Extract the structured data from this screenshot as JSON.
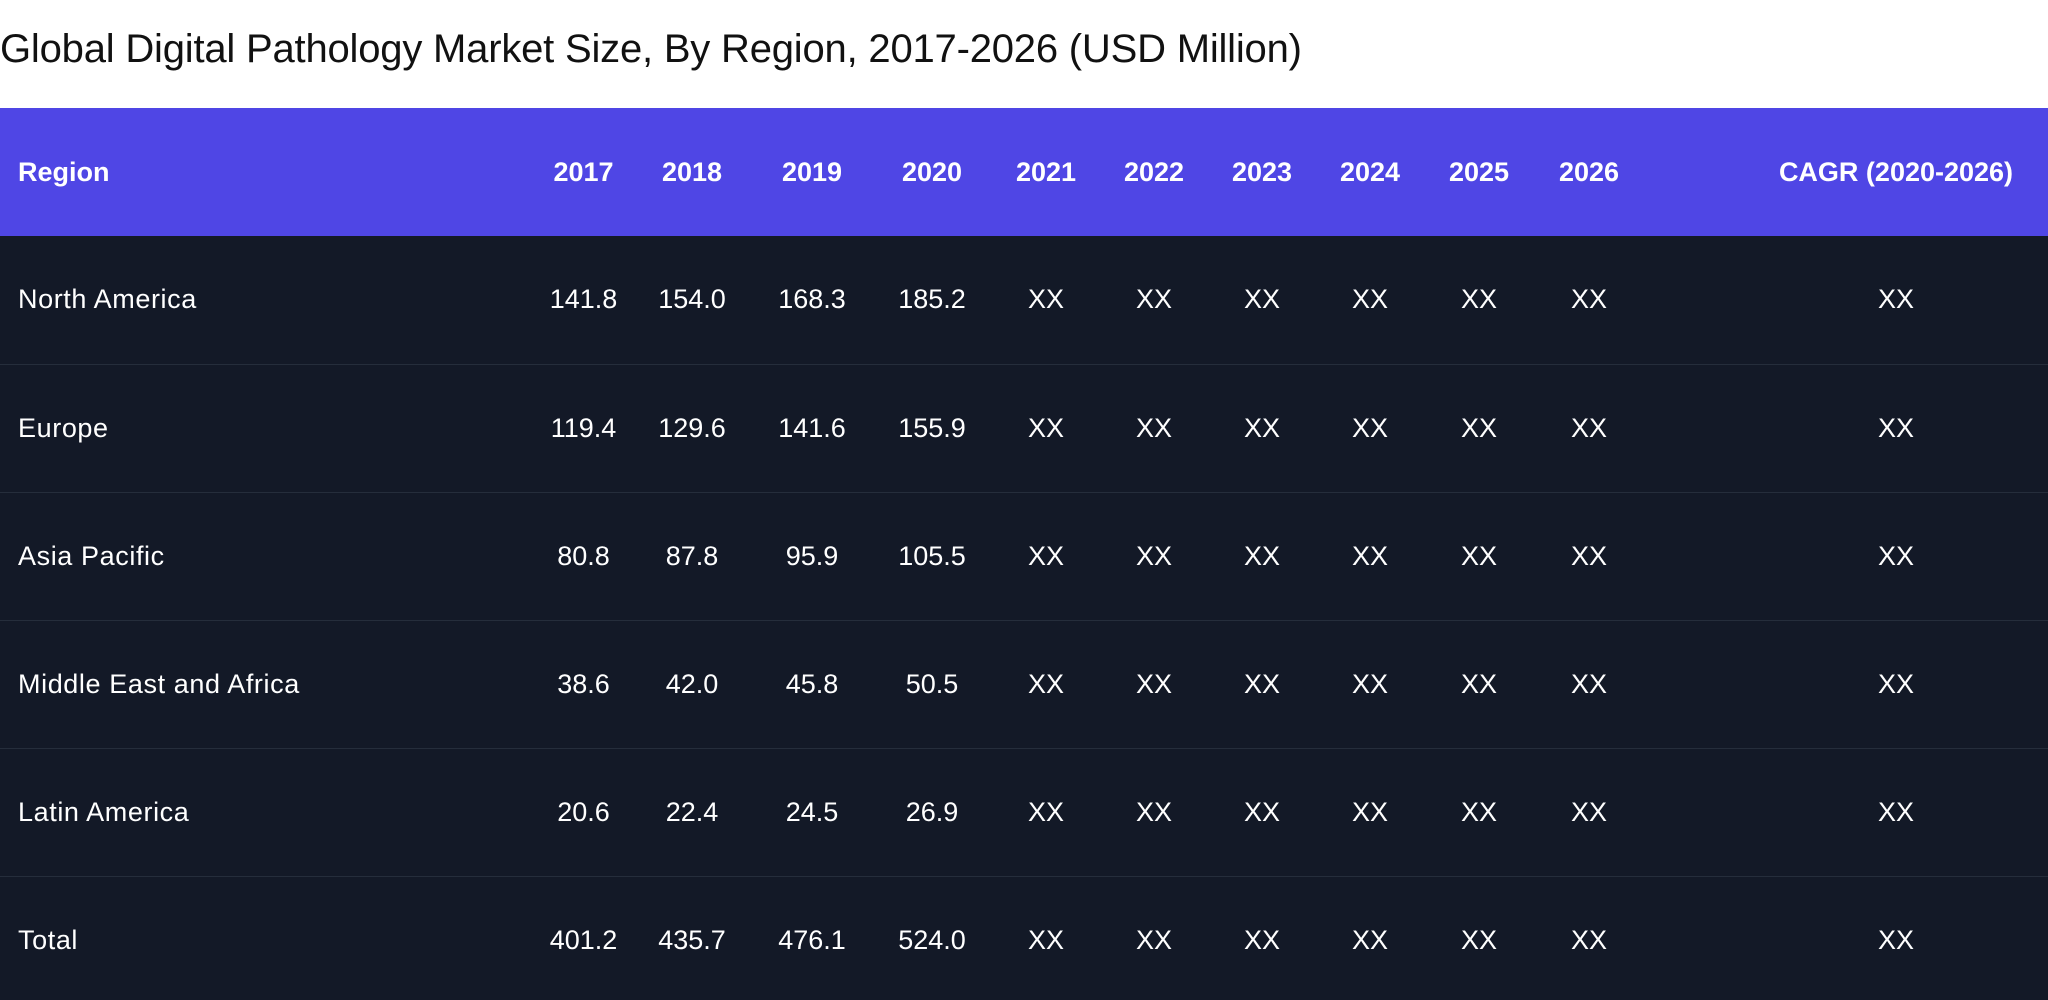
{
  "title": "Global Digital Pathology Market Size, By Region, 2017-2026 (USD Million)",
  "table": {
    "headers": [
      "Region",
      "2017",
      "2018",
      "2019",
      "2020",
      "2021",
      "2022",
      "2023",
      "2024",
      "2025",
      "2026",
      "CAGR (2020-2026)"
    ],
    "rows": [
      [
        "North America",
        "141.8",
        "154.0",
        "168.3",
        "185.2",
        "XX",
        "XX",
        "XX",
        "XX",
        "XX",
        "XX",
        "XX"
      ],
      [
        "Europe",
        "119.4",
        "129.6",
        "141.6",
        "155.9",
        "XX",
        "XX",
        "XX",
        "XX",
        "XX",
        "XX",
        "XX"
      ],
      [
        "Asia Pacific",
        "80.8",
        "87.8",
        "95.9",
        "105.5",
        "XX",
        "XX",
        "XX",
        "XX",
        "XX",
        "XX",
        "XX"
      ],
      [
        "Middle East and Africa",
        "38.6",
        "42.0",
        "45.8",
        "50.5",
        "XX",
        "XX",
        "XX",
        "XX",
        "XX",
        "XX",
        "XX"
      ],
      [
        "Latin America",
        "20.6",
        "22.4",
        "24.5",
        "26.9",
        "XX",
        "XX",
        "XX",
        "XX",
        "XX",
        "XX",
        "XX"
      ],
      [
        "Total",
        "401.2",
        "435.7",
        "476.1",
        "524.0",
        "XX",
        "XX",
        "XX",
        "XX",
        "XX",
        "XX",
        "XX"
      ]
    ]
  },
  "colors": {
    "header_bg": "#4f46e5",
    "body_bg": "#131927",
    "text_light": "#ffffff",
    "title_text": "#111111"
  }
}
